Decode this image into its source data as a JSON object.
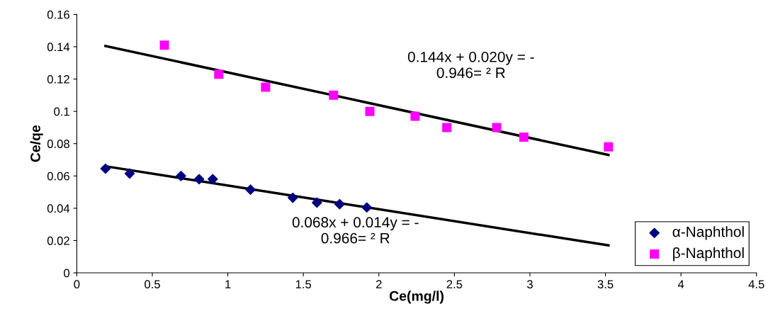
{
  "chart_data": {
    "type": "scatter",
    "xlabel": "Ce(mg/l)",
    "ylabel": "Ce/qe",
    "xlim": [
      0,
      4.5
    ],
    "xticks": [
      0,
      0.5,
      1,
      1.5,
      2,
      2.5,
      3,
      3.5,
      4,
      4.5
    ],
    "ylim": [
      0,
      0.16
    ],
    "yticks": [
      0,
      0.02,
      0.04,
      0.06,
      0.08,
      0.1,
      0.12,
      0.14,
      0.16
    ],
    "grid": false,
    "legend": "bottom right",
    "annotations": [
      "0.144x + 0.020y = -\n0.946= ² R",
      "0.068x + 0.014y = -\n0.966= ² R"
    ],
    "series": [
      {
        "name": "α-Naphthol",
        "marker": "diamond",
        "color": "#000080",
        "x": [
          0.19,
          0.35,
          0.69,
          0.81,
          0.9,
          1.15,
          1.43,
          1.59,
          1.74,
          1.92
        ],
        "values": [
          0.0645,
          0.0615,
          0.06,
          0.058,
          0.058,
          0.0515,
          0.0465,
          0.0435,
          0.0425,
          0.0405
        ]
      },
      {
        "name": "β-Naphthol",
        "marker": "square",
        "color": "#ff00ff",
        "x": [
          0.58,
          0.94,
          1.25,
          1.7,
          1.94,
          2.24,
          2.45,
          2.78,
          2.96,
          3.52
        ],
        "values": [
          0.141,
          0.123,
          0.115,
          0.11,
          0.1,
          0.097,
          0.09,
          0.09,
          0.084,
          0.078
        ]
      },
      {
        "type": "line",
        "marker": "none",
        "color": "#000000",
        "x": [
          0.19,
          3.52
        ],
        "values": [
          0.066,
          0.017
        ]
      },
      {
        "type": "line",
        "marker": "none",
        "color": "#000000",
        "x": [
          0.19,
          3.52
        ],
        "values": [
          0.1405,
          0.073
        ]
      }
    ]
  }
}
